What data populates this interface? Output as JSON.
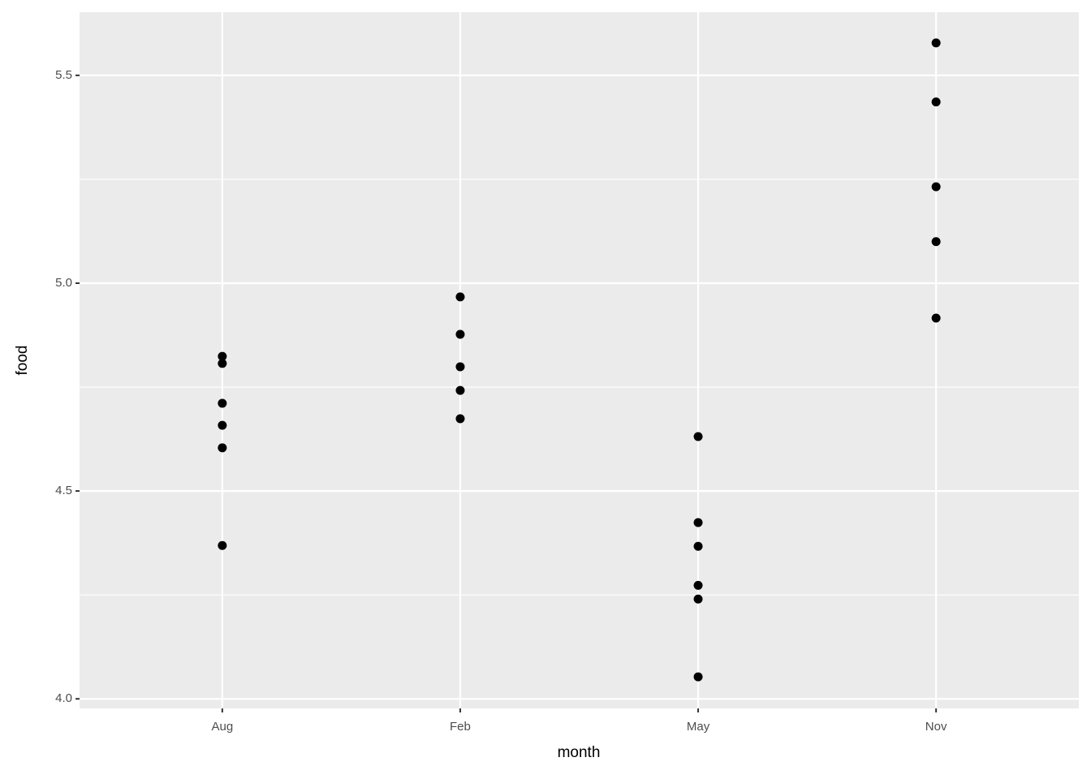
{
  "chart_data": {
    "type": "scatter",
    "x_label": "month",
    "y_label": "food",
    "categories": [
      "Aug",
      "Feb",
      "May",
      "Nov"
    ],
    "x": [
      "Aug",
      "Aug",
      "Aug",
      "Aug",
      "Aug",
      "Aug",
      "Feb",
      "Feb",
      "Feb",
      "Feb",
      "Feb",
      "May",
      "May",
      "May",
      "May",
      "May",
      "May",
      "Nov",
      "Nov",
      "Nov",
      "Nov",
      "Nov"
    ],
    "values": [
      4.824,
      4.807,
      4.711,
      4.658,
      4.604,
      4.369,
      4.967,
      4.877,
      4.799,
      4.742,
      4.674,
      4.631,
      4.424,
      4.367,
      4.273,
      4.24,
      4.053,
      5.578,
      5.436,
      5.232,
      5.1,
      4.916
    ],
    "color": "#000000",
    "ylim": [
      3.977,
      5.652
    ],
    "yticks": [
      {
        "value": 4,
        "label": "4.0"
      },
      4.5,
      {
        "value": 5,
        "label": "5.0"
      },
      5.5
    ],
    "grid": true
  }
}
